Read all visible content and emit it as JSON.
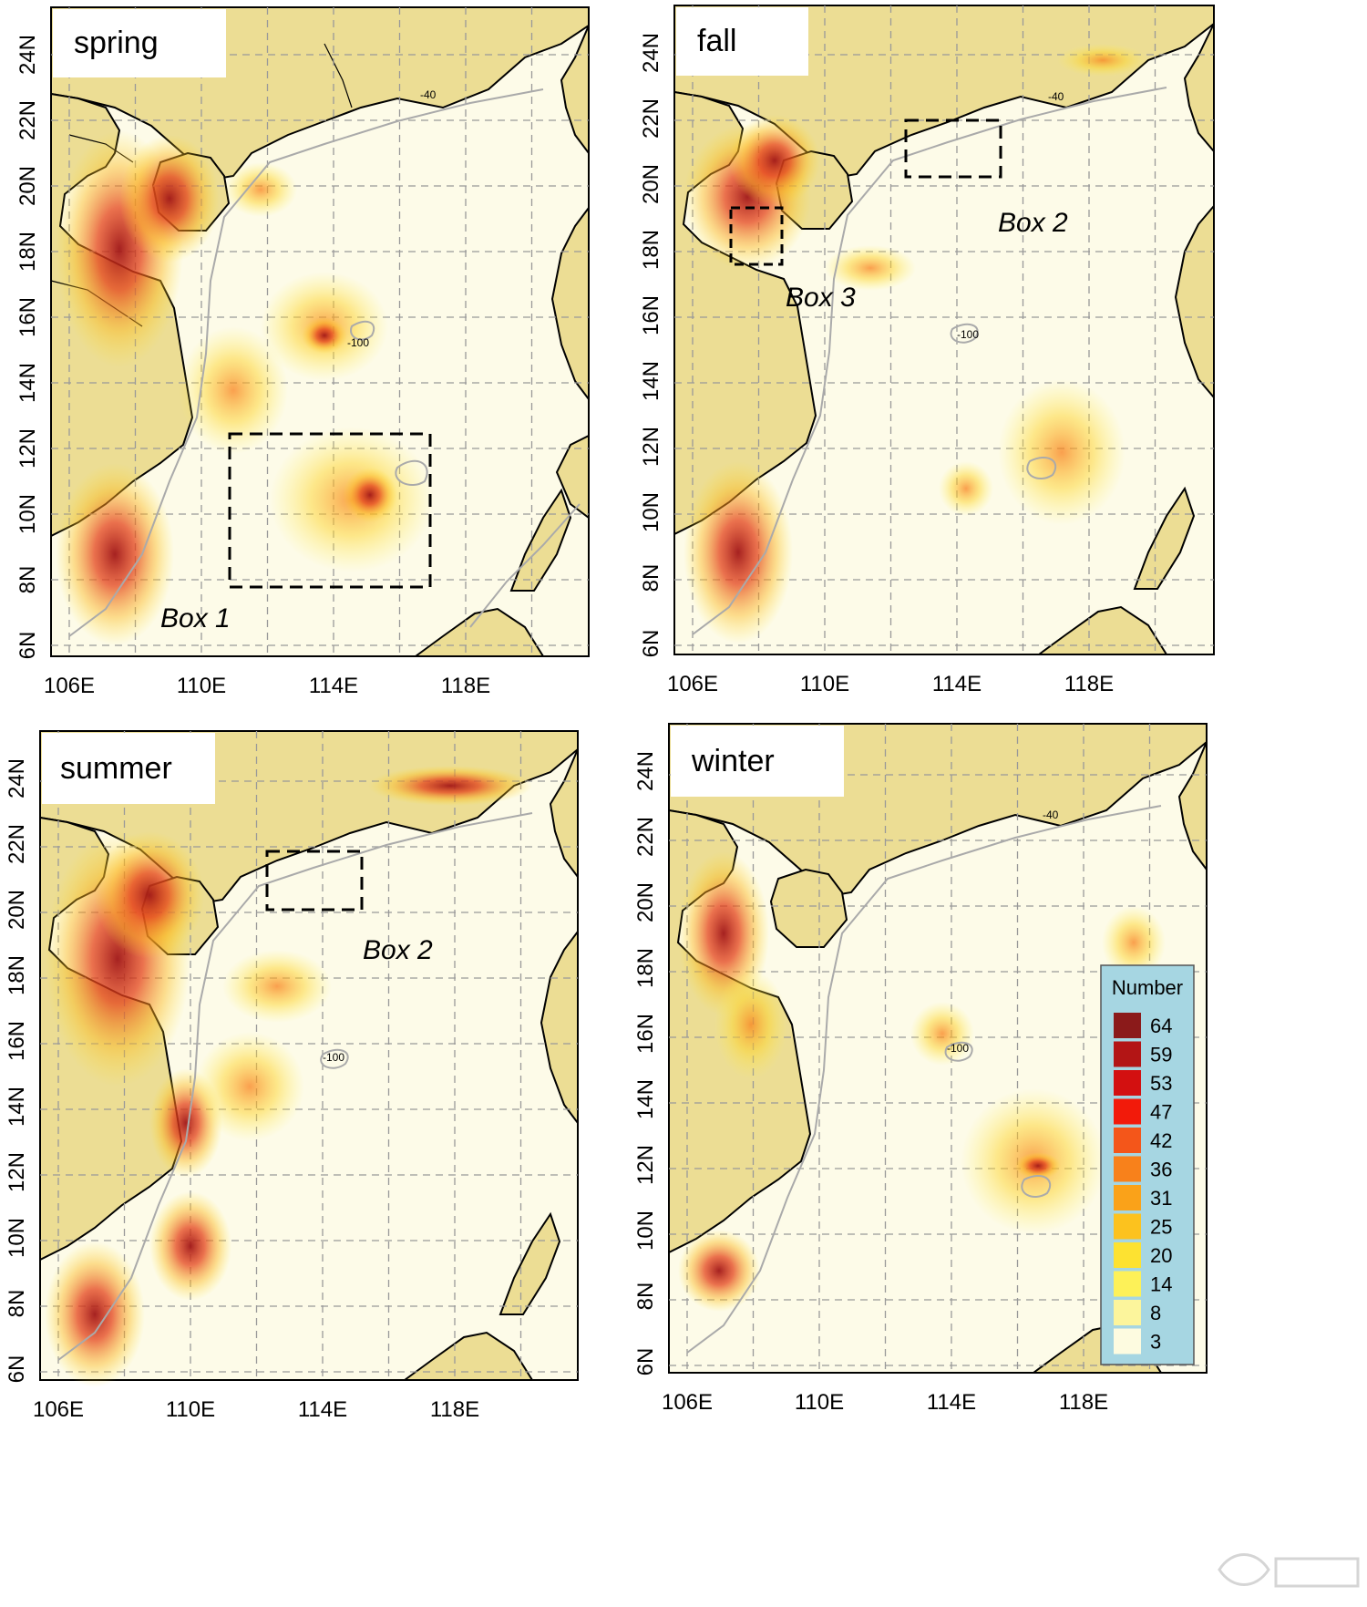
{
  "figure": {
    "x_ticks": [
      "106E",
      "110E",
      "114E",
      "118E"
    ],
    "y_ticks": [
      "6N",
      "8N",
      "10N",
      "12N",
      "14N",
      "16N",
      "18N",
      "20N",
      "22N",
      "24N"
    ],
    "contour_labels": [
      "-40",
      "-100"
    ]
  },
  "panels": [
    {
      "season": "spring",
      "boxes": [
        {
          "label": "Box 1"
        }
      ]
    },
    {
      "season": "fall",
      "boxes": [
        {
          "label": "Box 2"
        },
        {
          "label": "Box 3"
        }
      ]
    },
    {
      "season": "summer",
      "boxes": [
        {
          "label": "Box 2"
        }
      ]
    },
    {
      "season": "winter",
      "boxes": []
    }
  ],
  "legend": {
    "title": "Number",
    "levels": [
      "64",
      "59",
      "53",
      "47",
      "42",
      "36",
      "31",
      "25",
      "20",
      "14",
      "8",
      "3"
    ],
    "colors": [
      "#8b1a1a",
      "#b31515",
      "#d31010",
      "#f21a0a",
      "#f4561a",
      "#f8811b",
      "#faa219",
      "#fcc21e",
      "#fde231",
      "#fdf158",
      "#fcf59c",
      "#fdfbe0"
    ]
  },
  "colors": {
    "land": "#ecdd94",
    "sea_bg": "#fdfbe8",
    "grid": "#999999",
    "legend_bg": "#a6d6e2",
    "bathymetry": "#aaaaaa"
  }
}
